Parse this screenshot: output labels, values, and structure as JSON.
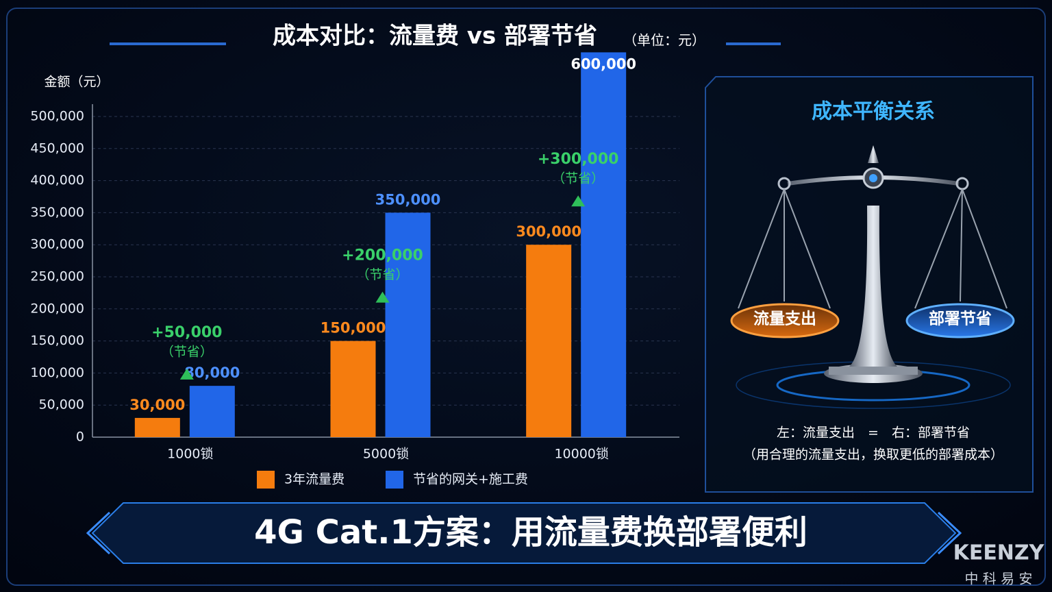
{
  "chart_data": {
    "type": "bar",
    "title": "成本对比：流量费 vs 部署节省",
    "subtitle": "（单位：元）",
    "y_label": "金额（元）",
    "categories": [
      "1000锁",
      "5000锁",
      "10000锁"
    ],
    "series": [
      {
        "name": "3年流量费",
        "color": "#f57c0e",
        "values": [
          30000,
          150000,
          300000
        ],
        "value_labels": [
          "30,000",
          "150,000",
          "300,000"
        ]
      },
      {
        "name": "节省的网关+施工费",
        "color": "#2166e8",
        "values": [
          80000,
          350000,
          600000
        ],
        "value_labels": [
          "80,000",
          "350,000",
          "600,000"
        ]
      }
    ],
    "savings_labels": [
      "+50,000",
      "+200,000",
      "+300,000"
    ],
    "savings_notes": [
      "（节省）",
      "（节省）",
      "（节省）"
    ],
    "ylim": [
      0,
      500000
    ],
    "yticks": [
      0,
      {
        "value": 50000,
        "label": "50,000"
      },
      {
        "value": 100000,
        "label": "100,000"
      },
      {
        "value": 150000,
        "label": "150,000"
      },
      {
        "value": 200000,
        "label": "200,000"
      },
      {
        "value": 250000,
        "label": "250,000"
      },
      {
        "value": 300000,
        "label": "300,000"
      },
      {
        "value": 350000,
        "label": "350,000"
      },
      {
        "value": 400000,
        "label": "400,000"
      },
      {
        "value": 450000,
        "label": "450,000"
      },
      {
        "value": 500000,
        "label": "500,000"
      }
    ],
    "grid": true
  },
  "panel": {
    "title": "成本平衡关系",
    "left_pan": "流量支出",
    "right_pan": "部署节省",
    "caption_lines": [
      "左：流量支出　=　右：部署节省",
      "（用合理的流量支出，换取更低的部署成本）"
    ]
  },
  "banner": "4G Cat.1方案：用流量费换部署便利",
  "logo": {
    "brand": "KEENZY",
    "subtitle": "中 科 易 安"
  }
}
